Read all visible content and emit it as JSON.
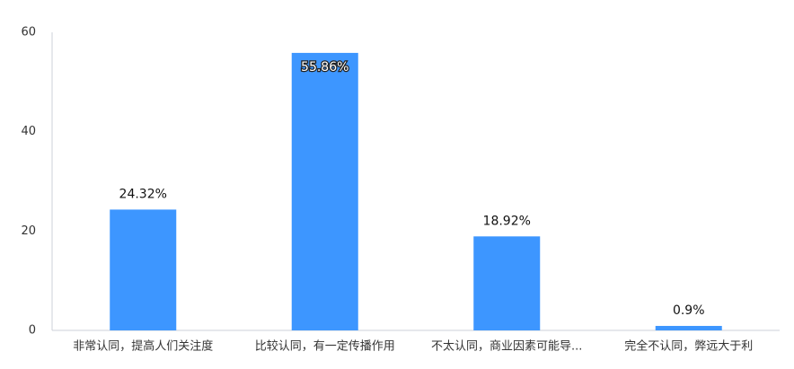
{
  "chart_data": {
    "type": "bar",
    "categories": [
      "非常认同，提高人们关注度",
      "比较认同，有一定传播作用",
      "不太认同，商业因素可能导...",
      "完全不认同，弊远大于利"
    ],
    "values": [
      24.32,
      55.86,
      18.92,
      0.9
    ],
    "value_labels": [
      "24.32%",
      "55.86%",
      "18.92%",
      "0.9%"
    ],
    "color": "#3d96ff",
    "ylim": [
      0,
      60
    ],
    "yticks": [
      0,
      20,
      40,
      60
    ],
    "grid": false
  }
}
